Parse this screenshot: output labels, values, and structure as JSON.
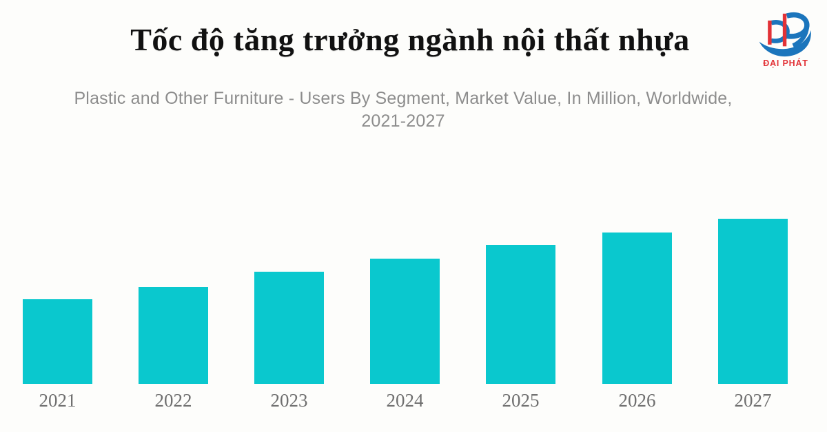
{
  "page": {
    "title": "Tốc độ tăng trưởng ngành nội thất nhựa",
    "background": "#fdfdfb"
  },
  "logo": {
    "monogram": "DP",
    "text": "ĐẠI PHÁT",
    "blue": "#1b75bc",
    "red": "#e23237"
  },
  "chart_data": {
    "type": "bar",
    "title": "Plastic and Other Furniture - Users By Segment, Market Value, In Million, Worldwide, 2021-2027",
    "subtitle_lines": [
      "Plastic and Other Furniture - Users By Segment, Market Value, In Million, Worldwide,",
      "2021-2027"
    ],
    "categories": [
      "2021",
      "2022",
      "2023",
      "2024",
      "2025",
      "2026",
      "2027"
    ],
    "values": [
      123,
      141,
      163,
      182,
      202,
      220,
      240
    ],
    "units": "relative bar height in pixels (no value axis or data labels shown in image)",
    "xlabel": "",
    "ylabel": "",
    "legend": "none",
    "grid": false,
    "bar_color": "#0ac8ce",
    "label_color": "#6f6f6f"
  }
}
